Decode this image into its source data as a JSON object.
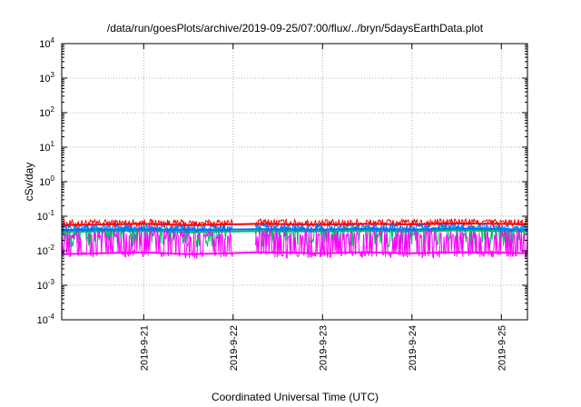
{
  "chart_data": {
    "type": "line",
    "title": "/data/run/goesPlots/archive/2019-09-25/07:00/flux/../bryn/5daysEarthData.plot",
    "xlabel": "Coordinated Universal Time (UTC)",
    "ylabel": "cSv/day",
    "yscale": "log",
    "ylim": [
      0.0001,
      10000
    ],
    "xlim": [
      "2019-09-20T02:00",
      "2019-09-25T07:00"
    ],
    "x_ticks": [
      {
        "date": "2019-09-21",
        "label": "2019-9-21"
      },
      {
        "date": "2019-09-22",
        "label": "2019-9-22"
      },
      {
        "date": "2019-09-23",
        "label": "2019-9-23"
      },
      {
        "date": "2019-09-24",
        "label": "2019-9-24"
      },
      {
        "date": "2019-09-25",
        "label": "2019-9-25"
      }
    ],
    "y_ticks": [
      {
        "value": 0.0001,
        "base": "10",
        "exp": "-4"
      },
      {
        "value": 0.001,
        "base": "10",
        "exp": "-3"
      },
      {
        "value": 0.01,
        "base": "10",
        "exp": "-2"
      },
      {
        "value": 0.1,
        "base": "10",
        "exp": "-1"
      },
      {
        "value": 1,
        "base": "10",
        "exp": "0"
      },
      {
        "value": 10,
        "base": "10",
        "exp": "1"
      },
      {
        "value": 100,
        "base": "10",
        "exp": "2"
      },
      {
        "value": 1000,
        "base": "10",
        "exp": "3"
      },
      {
        "value": 10000,
        "base": "10",
        "exp": "4"
      }
    ],
    "grid": true,
    "gap": {
      "start": "2019-09-22T00:00",
      "end": "2019-09-22T06:00"
    },
    "series": [
      {
        "color": "#ff0000",
        "x": [
          "2019-09-20T02:00",
          "2019-09-21T00:00",
          "2019-09-21T12:00",
          "2019-09-21T23:00",
          "2019-09-22T07:00",
          "2019-09-23T00:00",
          "2019-09-23T12:00",
          "2019-09-24T00:00",
          "2019-09-24T12:00",
          "2019-09-25T00:00",
          "2019-09-25T07:00"
        ],
        "y": [
          0.055,
          0.06,
          0.055,
          0.058,
          0.06,
          0.057,
          0.06,
          0.058,
          0.062,
          0.06,
          0.058
        ]
      },
      {
        "color": "#00c060",
        "x": [
          "2019-09-20T02:00",
          "2019-09-21T00:00",
          "2019-09-21T12:00",
          "2019-09-21T23:00",
          "2019-09-22T07:00",
          "2019-09-23T00:00",
          "2019-09-23T12:00",
          "2019-09-24T00:00",
          "2019-09-24T12:00",
          "2019-09-25T00:00",
          "2019-09-25T07:00"
        ],
        "y": [
          0.035,
          0.038,
          0.034,
          0.036,
          0.037,
          0.036,
          0.038,
          0.036,
          0.039,
          0.037,
          0.036
        ]
      },
      {
        "color": "#0070ff",
        "x": [
          "2019-09-20T02:00",
          "2019-09-21T00:00",
          "2019-09-21T12:00",
          "2019-09-21T23:00",
          "2019-09-22T07:00",
          "2019-09-23T00:00",
          "2019-09-23T12:00",
          "2019-09-24T00:00",
          "2019-09-24T12:00",
          "2019-09-25T00:00",
          "2019-09-25T07:00"
        ],
        "y": [
          0.04,
          0.042,
          0.039,
          0.041,
          0.042,
          0.041,
          0.043,
          0.041,
          0.044,
          0.042,
          0.041
        ]
      },
      {
        "color": "#ff00ff",
        "x": [
          "2019-09-20T02:00",
          "2019-09-21T00:00",
          "2019-09-21T12:00",
          "2019-09-21T23:00",
          "2019-09-22T07:00",
          "2019-09-23T00:00",
          "2019-09-23T12:00",
          "2019-09-24T00:00",
          "2019-09-24T12:00",
          "2019-09-25T00:00",
          "2019-09-25T07:00"
        ],
        "y": [
          0.008,
          0.009,
          0.008,
          0.0085,
          0.009,
          0.0085,
          0.009,
          0.0085,
          0.009,
          0.0088,
          0.0085
        ]
      }
    ]
  }
}
